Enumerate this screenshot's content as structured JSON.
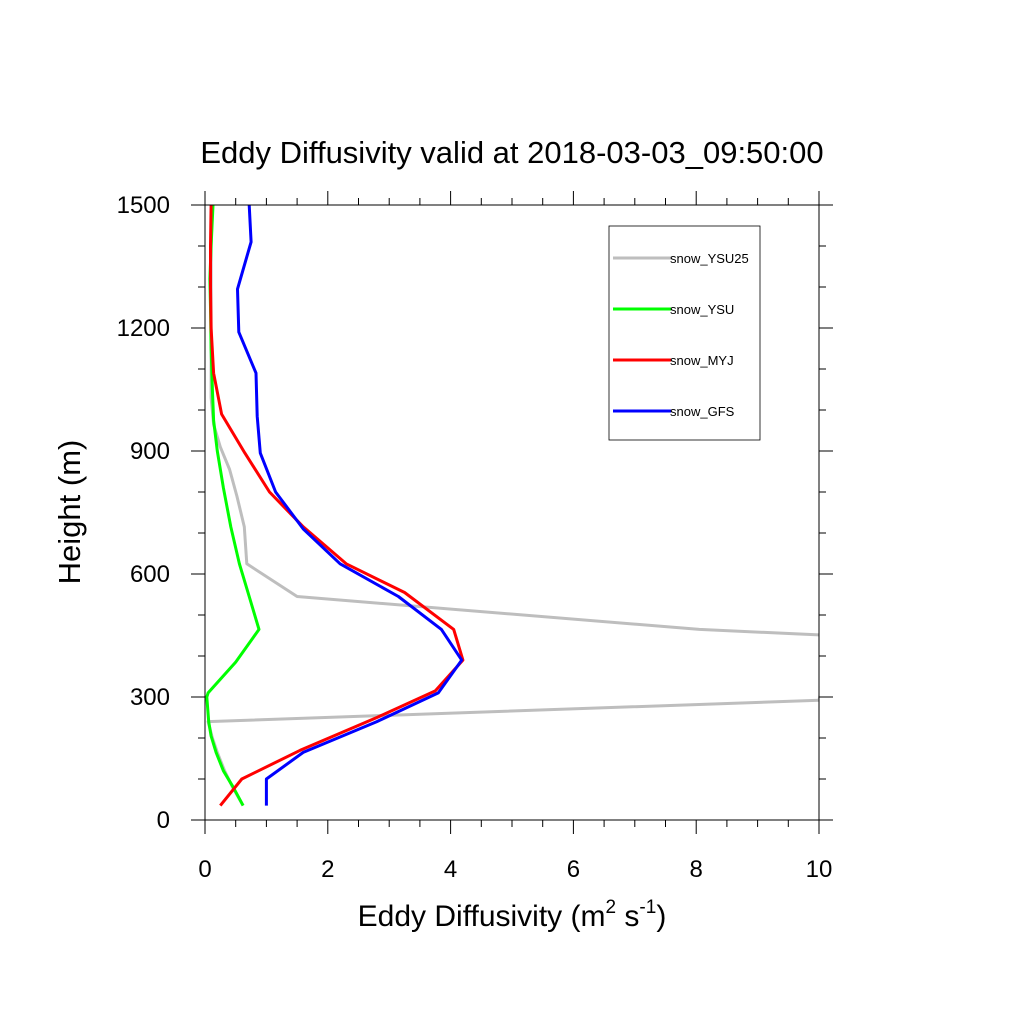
{
  "chart_data": {
    "type": "line",
    "title": "Eddy Diffusivity valid at 2018-03-03_09:50:00",
    "xlabel": "Eddy Diffusivity (m",
    "xlabel_unit_sup1": "2",
    "xlabel_unit_mid": " s",
    "xlabel_unit_sup2": "-1",
    "xlabel_unit_end": ")",
    "ylabel": "Height (m)",
    "xlim": [
      0,
      10
    ],
    "ylim": [
      0,
      1500
    ],
    "xticks": [
      0,
      2,
      4,
      6,
      8,
      10
    ],
    "yticks": [
      0,
      300,
      600,
      900,
      1200,
      1500
    ],
    "grid": false,
    "legend_position": "top-right",
    "series": [
      {
        "name": "snow_YSU25",
        "color": "#bebebe",
        "points": [
          [
            0.62,
            35
          ],
          [
            0.45,
            80
          ],
          [
            0.32,
            120
          ],
          [
            0.2,
            165
          ],
          [
            0.12,
            200
          ],
          [
            0.05,
            240
          ],
          [
            10.0,
            292
          ],
          [
            10.2,
            450
          ],
          [
            8.05,
            465
          ],
          [
            1.5,
            545
          ],
          [
            0.68,
            625
          ],
          [
            0.64,
            715
          ],
          [
            0.52,
            790
          ],
          [
            0.4,
            855
          ],
          [
            0.25,
            910
          ],
          [
            0.14,
            965
          ],
          [
            0.1,
            1030
          ],
          [
            0.1,
            1100
          ],
          [
            0.1,
            1200
          ],
          [
            0.1,
            1300
          ],
          [
            0.1,
            1400
          ],
          [
            0.12,
            1500
          ]
        ]
      },
      {
        "name": "snow_YSU",
        "color": "#00ff00",
        "points": [
          [
            0.62,
            35
          ],
          [
            0.46,
            80
          ],
          [
            0.3,
            120
          ],
          [
            0.18,
            165
          ],
          [
            0.1,
            205
          ],
          [
            0.06,
            240
          ],
          [
            0.03,
            300
          ],
          [
            0.05,
            310
          ],
          [
            0.5,
            385
          ],
          [
            0.88,
            465
          ],
          [
            0.72,
            545
          ],
          [
            0.56,
            625
          ],
          [
            0.42,
            715
          ],
          [
            0.3,
            810
          ],
          [
            0.2,
            900
          ],
          [
            0.14,
            975
          ],
          [
            0.12,
            1050
          ],
          [
            0.1,
            1150
          ],
          [
            0.09,
            1250
          ],
          [
            0.08,
            1320
          ],
          [
            0.1,
            1400
          ],
          [
            0.13,
            1500
          ]
        ]
      },
      {
        "name": "snow_MYJ",
        "color": "#ff0000",
        "points": [
          [
            0.25,
            35
          ],
          [
            0.6,
            100
          ],
          [
            1.55,
            170
          ],
          [
            2.8,
            250
          ],
          [
            3.75,
            315
          ],
          [
            4.2,
            390
          ],
          [
            4.05,
            465
          ],
          [
            3.25,
            555
          ],
          [
            2.3,
            625
          ],
          [
            1.6,
            715
          ],
          [
            1.05,
            800
          ],
          [
            0.65,
            895
          ],
          [
            0.27,
            990
          ],
          [
            0.14,
            1090
          ],
          [
            0.1,
            1200
          ],
          [
            0.09,
            1300
          ],
          [
            0.09,
            1400
          ],
          [
            0.1,
            1500
          ]
        ]
      },
      {
        "name": "snow_GFS",
        "color": "#0000ff",
        "points": [
          [
            1.0,
            35
          ],
          [
            1.0,
            100
          ],
          [
            1.6,
            165
          ],
          [
            2.8,
            240
          ],
          [
            3.8,
            310
          ],
          [
            4.18,
            390
          ],
          [
            3.85,
            465
          ],
          [
            3.15,
            545
          ],
          [
            2.2,
            625
          ],
          [
            1.6,
            710
          ],
          [
            1.15,
            800
          ],
          [
            0.9,
            895
          ],
          [
            0.85,
            985
          ],
          [
            0.83,
            1090
          ],
          [
            0.55,
            1190
          ],
          [
            0.53,
            1295
          ],
          [
            0.75,
            1410
          ],
          [
            0.72,
            1500
          ]
        ]
      }
    ]
  }
}
